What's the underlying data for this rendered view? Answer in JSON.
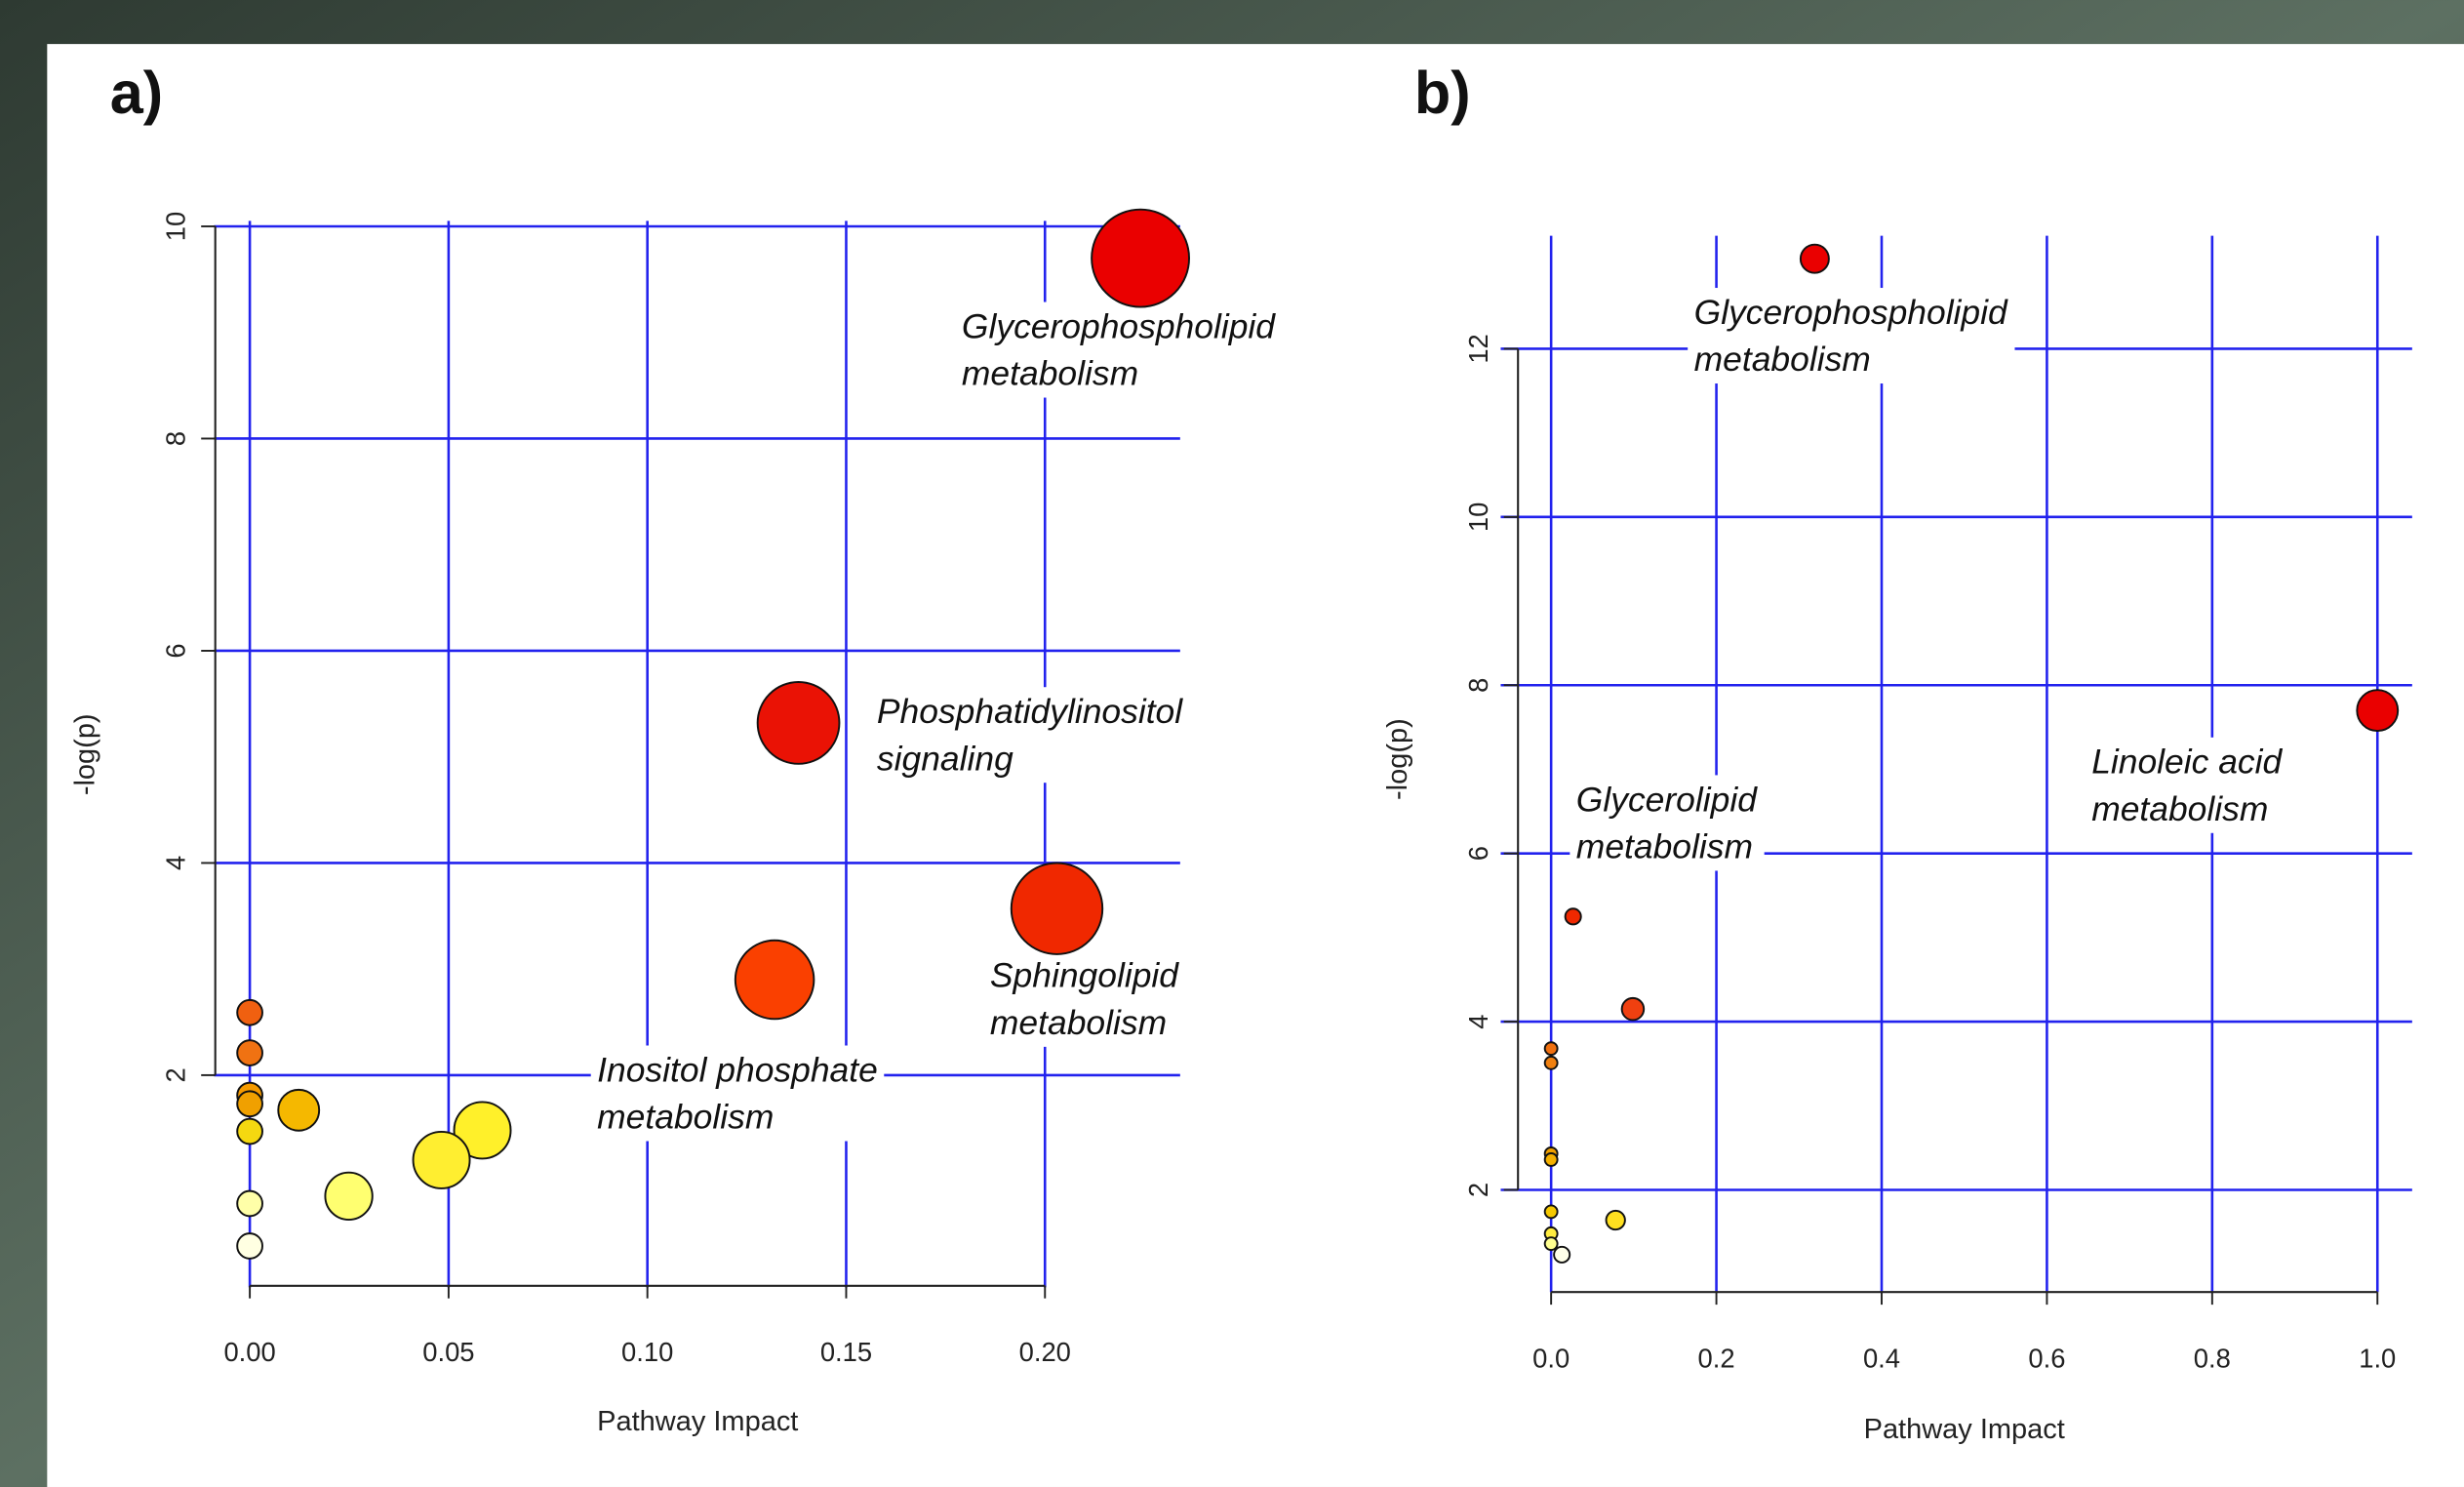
{
  "chart_data": [
    {
      "type": "scatter",
      "title": "a)",
      "x_label": "Pathway Impact",
      "y_label": "-log(p)",
      "x": [
        0.224,
        0.138,
        0.203,
        0.132,
        0,
        0,
        0,
        0,
        0.0123,
        0,
        0.0585,
        0.0482,
        0.0249,
        0,
        0
      ],
      "values": [
        9.7,
        5.32,
        3.57,
        2.9,
        2.59,
        2.21,
        1.81,
        1.73,
        1.67,
        1.47,
        1.48,
        1.2,
        0.86,
        0.79,
        0.39
      ],
      "sizes": [
        31,
        26,
        29,
        25,
        8,
        8,
        8,
        8,
        13,
        8,
        18,
        18,
        15,
        8,
        8
      ],
      "colors": [
        "#ea0000",
        "#ea1205",
        "#f02800",
        "#fa4000",
        "#f06010",
        "#f07212",
        "#f59a00",
        "#f0a000",
        "#f5b800",
        "#f5d810",
        "#fff02a",
        "#ffee30",
        "#ffff70",
        "#ffffa8",
        "#ffffe2"
      ],
      "xlim": [
        -0.009,
        0.234
      ],
      "ylim": [
        0,
        10.2
      ],
      "xticks": [
        {
          "value": 0,
          "label": "0.00"
        },
        0.05,
        {
          "value": 0.1,
          "label": "0.10"
        },
        0.15,
        {
          "value": 0.2,
          "label": "0.20"
        }
      ],
      "yticks": [
        2,
        4,
        6,
        8,
        10
      ],
      "grid": true,
      "grid_color": "#2222ee",
      "annotations": [
        [
          "Glycerophospholipid",
          "metabolism"
        ],
        [
          "Phosphatidylinositol",
          "signaling"
        ],
        [
          "Sphingolipid",
          "metabolism"
        ],
        [
          "Inositol phosphate",
          "metabolism"
        ]
      ]
    },
    {
      "type": "scatter",
      "title": "b)",
      "x_label": "Pathway Impact",
      "y_label": "-log(p)",
      "x": [
        0.319,
        1.0,
        0.0266,
        0.0989,
        0,
        0,
        0,
        0,
        0,
        0.078,
        0,
        0,
        0.013
      ],
      "values": [
        13.07,
        7.7,
        5.25,
        4.15,
        3.68,
        3.51,
        2.43,
        2.36,
        1.74,
        1.64,
        1.48,
        1.36,
        1.23
      ],
      "sizes": [
        9,
        13,
        5,
        7,
        4,
        4,
        4,
        4,
        4,
        6,
        4,
        4,
        5
      ],
      "colors": [
        "#ea0000",
        "#ea0000",
        "#f02800",
        "#f04010",
        "#f07010",
        "#f08010",
        "#f0a000",
        "#f5b000",
        "#f5c800",
        "#ffe020",
        "#ffec40",
        "#ffff90",
        "#ffffe8"
      ],
      "xlim": [
        -0.061,
        1.042
      ],
      "ylim": [
        0.785,
        13.53
      ],
      "xticks": [
        {
          "value": 0,
          "label": "0.0"
        },
        0.2,
        0.4,
        0.6,
        0.8,
        {
          "value": 1,
          "label": "1.0"
        }
      ],
      "yticks": [
        2,
        4,
        6,
        8,
        10,
        12
      ],
      "grid": true,
      "grid_color": "#2222ee",
      "annotations": [
        [
          "Glycerophospholipid",
          "metabolism"
        ],
        [
          "Glycerolipid",
          "metabolism"
        ],
        [
          "Linoleic acid",
          "metabolism"
        ]
      ]
    }
  ]
}
